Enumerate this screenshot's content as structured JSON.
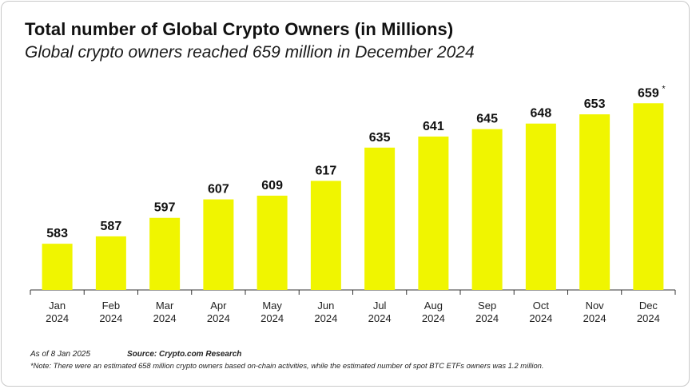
{
  "header": {
    "title": "Total number of Global Crypto Owners (in Millions)",
    "subtitle": "Global crypto owners reached 659 million in December 2024"
  },
  "footer": {
    "as_of": "As of 8 Jan 2025",
    "source": "Source: Crypto.com Research",
    "note": "*Note: There were an estimated 658 million crypto owners based on-chain activities, while the estimated number of spot BTC ETFs owners was 1.2 million."
  },
  "colors": {
    "bar": "#f0f500",
    "axis": "#333333",
    "text": "#111111"
  },
  "chart_data": {
    "type": "bar",
    "title": "Total number of Global Crypto Owners (in Millions)",
    "subtitle": "Global crypto owners reached 659 million in December 2024",
    "xlabel": "",
    "ylabel": "",
    "categories": [
      [
        "Jan",
        "2024"
      ],
      [
        "Feb",
        "2024"
      ],
      [
        "Mar",
        "2024"
      ],
      [
        "Apr",
        "2024"
      ],
      [
        "May",
        "2024"
      ],
      [
        "Jun",
        "2024"
      ],
      [
        "Jul",
        "2024"
      ],
      [
        "Aug",
        "2024"
      ],
      [
        "Sep",
        "2024"
      ],
      [
        "Oct",
        "2024"
      ],
      [
        "Nov",
        "2024"
      ],
      [
        "Dec",
        "2024"
      ]
    ],
    "values": [
      583,
      587,
      597,
      607,
      609,
      617,
      635,
      641,
      645,
      648,
      653,
      659
    ],
    "data_labels": [
      "583",
      "587",
      "597",
      "607",
      "609",
      "617",
      "635",
      "641",
      "645",
      "648",
      "653",
      "659"
    ],
    "annotations": [
      {
        "index": 11,
        "text": "*"
      }
    ],
    "ylim": [
      558,
      663
    ],
    "grid": false,
    "legend": "none"
  }
}
